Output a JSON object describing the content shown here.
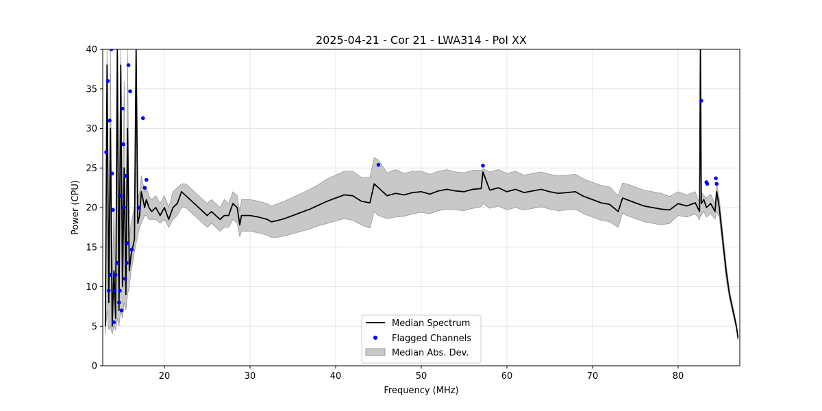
{
  "chart_data": {
    "type": "line",
    "title": "2025-04-21 - Cor 21 - LWA314 - Pol XX",
    "xlabel": "Frequency (MHz)",
    "ylabel": "Power (CPU)",
    "xlim": [
      12.8,
      87.2
    ],
    "ylim": [
      0,
      40
    ],
    "xticks": [
      20,
      30,
      40,
      50,
      60,
      70,
      80
    ],
    "yticks": [
      0,
      5,
      10,
      15,
      20,
      25,
      30,
      35,
      40
    ],
    "grid": true,
    "legend_position": "bottom-center",
    "colors": {
      "median": "#000000",
      "flagged": "#0000ff",
      "mad": "#c8c8c8",
      "mad_edge": "#999999"
    },
    "legend": [
      {
        "label": "Median Spectrum",
        "kind": "line"
      },
      {
        "label": "Flagged Channels",
        "kind": "point"
      },
      {
        "label": "Median Abs. Dev.",
        "kind": "patch"
      }
    ],
    "series": [
      {
        "name": "Median Spectrum",
        "x": [
          13.1,
          13.3,
          13.5,
          13.7,
          13.9,
          14.1,
          14.3,
          14.5,
          14.7,
          14.9,
          15.1,
          15.3,
          15.5,
          15.7,
          15.9,
          16.1,
          16.3,
          16.5,
          16.7,
          16.9,
          17.1,
          17.3,
          17.5,
          17.7,
          17.9,
          18.2,
          18.5,
          19.0,
          19.5,
          20.0,
          20.5,
          21.0,
          21.5,
          22.0,
          22.5,
          23.0,
          23.5,
          24.0,
          24.5,
          25.0,
          25.5,
          26.0,
          26.5,
          27.0,
          27.5,
          28.0,
          28.5,
          28.8,
          29.0,
          30.0,
          31.0,
          32.0,
          32.5,
          33.0,
          34.0,
          35.0,
          36.0,
          37.0,
          38.0,
          39.0,
          40.0,
          41.0,
          42.0,
          43.0,
          44.0,
          44.5,
          45.0,
          46.0,
          47.0,
          48.0,
          49.0,
          50.0,
          51.0,
          52.0,
          53.0,
          54.0,
          55.0,
          56.0,
          57.0,
          57.2,
          58.0,
          59.0,
          60.0,
          61.0,
          62.0,
          63.0,
          64.0,
          65.0,
          66.0,
          67.0,
          68.0,
          69.0,
          70.0,
          71.0,
          72.0,
          73.0,
          73.5,
          74.0,
          75.0,
          76.0,
          77.0,
          78.0,
          79.0,
          80.0,
          81.0,
          82.0,
          82.5,
          82.6,
          82.7,
          83.0,
          83.3,
          83.8,
          84.3,
          84.5,
          84.8,
          85.2,
          85.6,
          86.0,
          86.4,
          86.8,
          87.0
        ],
        "y": [
          5,
          38,
          8,
          30,
          5,
          12,
          6,
          40,
          7,
          38,
          10,
          25,
          9,
          30,
          12,
          14,
          15,
          16,
          40,
          18,
          19,
          22,
          21,
          20,
          21,
          20,
          19.5,
          20,
          19,
          20,
          18.5,
          20,
          20.5,
          22,
          21.5,
          21,
          20.5,
          20,
          19.5,
          19,
          19.5,
          19,
          18.5,
          19,
          19,
          20.5,
          20,
          17.8,
          19,
          19,
          18.8,
          18.5,
          18.2,
          18.3,
          18.6,
          19,
          19.4,
          19.8,
          20.3,
          20.8,
          21.2,
          21.6,
          21.5,
          20.8,
          20.6,
          23,
          22.5,
          21.5,
          21.8,
          21.6,
          21.9,
          22,
          21.7,
          22.1,
          22.3,
          22.1,
          22,
          22.3,
          22.4,
          24.5,
          22.2,
          22.5,
          22,
          22.3,
          21.9,
          22.1,
          22.3,
          22,
          21.8,
          21.9,
          22,
          21.4,
          21,
          20.6,
          20.4,
          19.5,
          21.2,
          21,
          20.6,
          20.2,
          20,
          19.8,
          19.7,
          20.5,
          20.2,
          20.6,
          19.5,
          40,
          20.5,
          21,
          20,
          20.5,
          19.5,
          22,
          20,
          16,
          12,
          9,
          7,
          5,
          3.5
        ],
        "lower": [
          4,
          7,
          4.5,
          5,
          4,
          5,
          4.5,
          6,
          5,
          7,
          6,
          8,
          7,
          9,
          10,
          12,
          13,
          14.5,
          15.5,
          16.5,
          17.5,
          18,
          18.5,
          19,
          19,
          18.5,
          18.5,
          18.5,
          18,
          18.5,
          17.5,
          18.5,
          19,
          20,
          20,
          19.5,
          19,
          18.5,
          18,
          17.5,
          18,
          17.5,
          17,
          17.5,
          17.5,
          18.5,
          18,
          16.3,
          17,
          17,
          16.8,
          16.5,
          16.2,
          16.2,
          16.4,
          16.7,
          17,
          17.3,
          17.7,
          18,
          18.3,
          18.6,
          18.4,
          17.8,
          17.4,
          19.5,
          19,
          18.6,
          18.8,
          18.9,
          19.2,
          19.4,
          19.2,
          19.6,
          19.8,
          19.7,
          19.6,
          19.9,
          20.1,
          20.5,
          19.9,
          20.2,
          19.7,
          20,
          19.7,
          19.9,
          20.1,
          19.8,
          19.6,
          19.7,
          19.8,
          19.2,
          18.8,
          18.4,
          18.2,
          17.5,
          19.3,
          19,
          18.6,
          18.2,
          18,
          17.8,
          18,
          19,
          18.8,
          19.2,
          18.5,
          19,
          19,
          19.5,
          18.8,
          19.3,
          18.5,
          19.5,
          18.8,
          15,
          11,
          8.5,
          6.5,
          4.6,
          3.2
        ],
        "upper": [
          8,
          40,
          12,
          40,
          9,
          20,
          10,
          40,
          12,
          40,
          16,
          36,
          15,
          40,
          16,
          18,
          19,
          20,
          40,
          21,
          22,
          24,
          23,
          22,
          22.5,
          21.5,
          21,
          21.5,
          20.5,
          21.5,
          20,
          22,
          22.5,
          23,
          23,
          22.5,
          22,
          21.5,
          21,
          20.5,
          21,
          20.5,
          20,
          21,
          20.5,
          22,
          21.5,
          19.5,
          21,
          21,
          20.8,
          20.5,
          20.2,
          20.4,
          20.8,
          21.3,
          21.8,
          22.3,
          22.9,
          23.6,
          24.1,
          24.6,
          24.6,
          23.8,
          23.8,
          26.3,
          26,
          24.4,
          24.8,
          24.3,
          24.6,
          24.6,
          24.2,
          24.6,
          24.8,
          24.5,
          24.4,
          24.7,
          24.7,
          24.9,
          24.5,
          24.8,
          24.3,
          24.6,
          24.1,
          24.3,
          24.5,
          24.2,
          24,
          24.1,
          24.2,
          23.6,
          23.2,
          22.8,
          22.6,
          21.5,
          23.1,
          23,
          22.6,
          22.2,
          22,
          21.8,
          21.4,
          22,
          21.6,
          22,
          20.5,
          21,
          22,
          21.5,
          21.2,
          21.7,
          20.5,
          23,
          21.2,
          17,
          13,
          9.5,
          7.5,
          5.4,
          3.8
        ]
      },
      {
        "name": "Flagged Channels",
        "x": [
          13.2,
          13.4,
          13.5,
          13.6,
          13.7,
          13.8,
          13.9,
          14.0,
          14.1,
          14.2,
          14.3,
          14.5,
          14.7,
          14.8,
          14.9,
          15.0,
          15.1,
          15.2,
          15.3,
          15.4,
          15.5,
          15.6,
          15.7,
          15.8,
          16.0,
          16.2,
          17.0,
          17.5,
          17.7,
          17.9,
          45.0,
          57.2,
          82.7,
          83.3,
          83.4,
          84.4,
          84.5
        ],
        "y": [
          27,
          36,
          9.5,
          31,
          11.5,
          40,
          24.3,
          19.7,
          5.5,
          9.5,
          11.5,
          13,
          8,
          9.5,
          21.5,
          7,
          32.5,
          28,
          20,
          11,
          24,
          13,
          15.5,
          38,
          34.7,
          14.7,
          20,
          31.3,
          22.5,
          23.5,
          25.4,
          25.3,
          33.5,
          23.2,
          23,
          23.7,
          23
        ]
      }
    ]
  }
}
